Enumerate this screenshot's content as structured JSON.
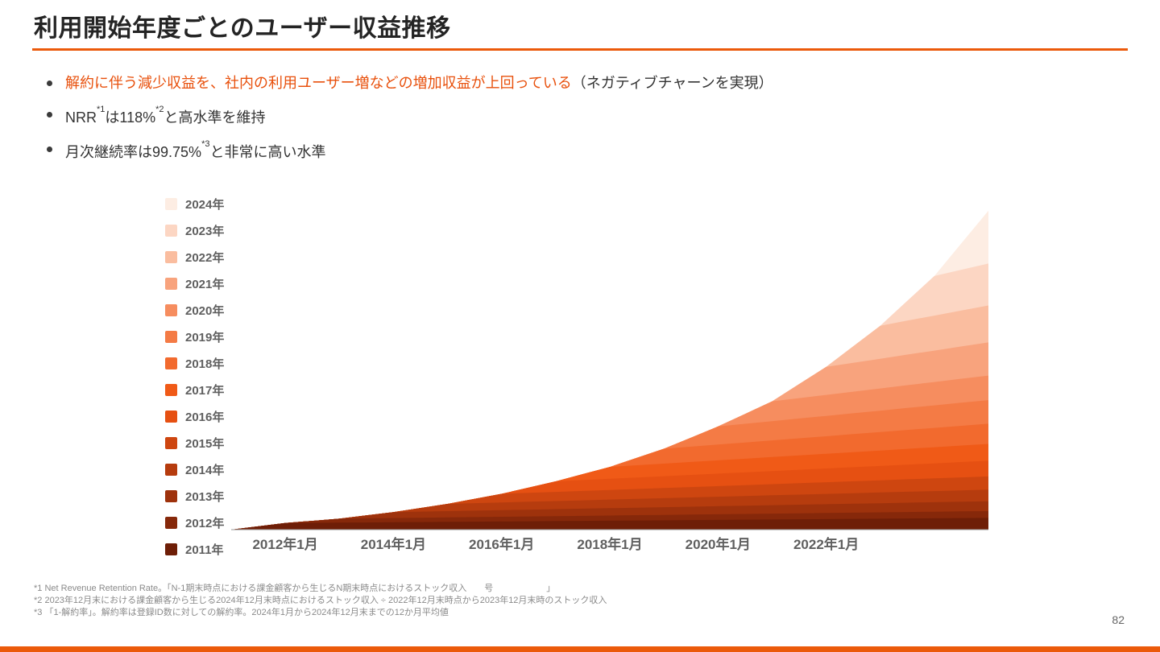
{
  "colors": {
    "accent": "#EB5A0B",
    "highlight_text": "#E8500C"
  },
  "header": {
    "title": "利用開始年度ごとのユーザー収益推移"
  },
  "bullets": {
    "b1": {
      "highlight": "解約に伴う減少収益を、社内の利用ユーザー増などの増加収益が上回っている",
      "suffix": "（ネガティブチャーンを実現）"
    },
    "b2": {
      "t1": "NRR",
      "s1": "*1",
      "t2": "は118%",
      "s2": "*2",
      "t3": "と高水準を維持"
    },
    "b3": {
      "t1": "月次継続率は99.75%",
      "s1": "*3",
      "t2": "と非常に高い水準"
    }
  },
  "footnotes": [
    "*1 Net Revenue Retention Rate。「N-1期末時点における課金顧客から生じるN期末時点におけるストック収入　　号　　　　　　」",
    "*2 2023年12月末における課金顧客から生じる2024年12月末時点におけるストック収入 ÷ 2022年12月末時点から2023年12月末時のストック収入",
    "*3 「1-解約率」。解約率は登録ID数に対しての解約率。2024年1月から2024年12月末までの12か月平均値"
  ],
  "page_number": "82",
  "chart_data": {
    "type": "area",
    "stacked": true,
    "title": "",
    "xlabel": "",
    "ylabel": "",
    "ylim": [
      0,
      100
    ],
    "y_axis_labels_visible": false,
    "grid": false,
    "legend_position": "left",
    "x": [
      2011,
      2011.5,
      2012,
      2012.5,
      2013,
      2013.5,
      2014,
      2014.5,
      2015,
      2015.5,
      2016,
      2016.5,
      2017,
      2017.5,
      2018,
      2018.5,
      2019,
      2019.5,
      2020,
      2020.5,
      2021,
      2021.5,
      2022,
      2022.5,
      2023,
      2023.5,
      2024,
      2024.5,
      2025
    ],
    "x_ticks": [
      {
        "t": 2012,
        "label": "2012年1月"
      },
      {
        "t": 2014,
        "label": "2014年1月"
      },
      {
        "t": 2016,
        "label": "2016年1月"
      },
      {
        "t": 2018,
        "label": "2018年1月"
      },
      {
        "t": 2020,
        "label": "2020年1月"
      },
      {
        "t": 2022,
        "label": "2022年1月"
      }
    ],
    "series": [
      {
        "name": "2011年",
        "color": "#6E1E07",
        "values": [
          0,
          1,
          2,
          2.06,
          2.12,
          2.18,
          2.24,
          2.3,
          2.36,
          2.42,
          2.48,
          2.54,
          2.6,
          2.66,
          2.72,
          2.78,
          2.84,
          2.9,
          2.96,
          3.02,
          3.08,
          3.14,
          3.2,
          3.26,
          3.32,
          3.38,
          3.44,
          3.5,
          3.56
        ]
      },
      {
        "name": "2012年",
        "color": "#86280A",
        "values": [
          0,
          0,
          0,
          0.6,
          1.2,
          1.24,
          1.27,
          1.31,
          1.34,
          1.38,
          1.42,
          1.45,
          1.49,
          1.52,
          1.56,
          1.6,
          1.63,
          1.67,
          1.7,
          1.74,
          1.78,
          1.81,
          1.85,
          1.88,
          1.92,
          1.96,
          1.99,
          2.03,
          2.06
        ]
      },
      {
        "name": "2013年",
        "color": "#9E320C",
        "values": [
          0,
          0,
          0,
          0,
          0,
          0.9,
          1.8,
          1.85,
          1.91,
          1.96,
          2.02,
          2.07,
          2.12,
          2.18,
          2.23,
          2.29,
          2.34,
          2.39,
          2.45,
          2.5,
          2.56,
          2.61,
          2.66,
          2.72,
          2.77,
          2.83,
          2.88,
          2.93,
          2.99
        ]
      },
      {
        "name": "2014年",
        "color": "#B63C0E",
        "values": [
          0,
          0,
          0,
          0,
          0,
          0,
          0,
          1.1,
          2.2,
          2.27,
          2.33,
          2.4,
          2.46,
          2.53,
          2.6,
          2.66,
          2.73,
          2.79,
          2.86,
          2.92,
          2.99,
          3.06,
          3.12,
          3.19,
          3.25,
          3.32,
          3.38,
          3.45,
          3.52
        ]
      },
      {
        "name": "2015年",
        "color": "#CE4610",
        "values": [
          0,
          0,
          0,
          0,
          0,
          0,
          0,
          0,
          0,
          1.3,
          2.6,
          2.68,
          2.76,
          2.83,
          2.91,
          2.99,
          3.07,
          3.15,
          3.22,
          3.3,
          3.38,
          3.46,
          3.54,
          3.61,
          3.69,
          3.77,
          3.85,
          3.93,
          4
        ]
      },
      {
        "name": "2016年",
        "color": "#E65012",
        "values": [
          0,
          0,
          0,
          0,
          0,
          0,
          0,
          0,
          0,
          0,
          0,
          1.6,
          3.2,
          3.3,
          3.39,
          3.49,
          3.58,
          3.68,
          3.78,
          3.87,
          3.97,
          4.06,
          4.16,
          4.26,
          4.35,
          4.45,
          4.54,
          4.64,
          4.74
        ]
      },
      {
        "name": "2017年",
        "color": "#F05A17",
        "values": [
          0,
          0,
          0,
          0,
          0,
          0,
          0,
          0,
          0,
          0,
          0,
          0,
          0,
          1.8,
          3.6,
          3.71,
          3.82,
          3.92,
          4.03,
          4.14,
          4.25,
          4.36,
          4.46,
          4.57,
          4.68,
          4.79,
          4.9,
          5,
          5.11
        ]
      },
      {
        "name": "2018年",
        "color": "#F26A2E",
        "values": [
          0,
          0,
          0,
          0,
          0,
          0,
          0,
          0,
          0,
          0,
          0,
          0,
          0,
          0,
          0,
          2.25,
          4.5,
          4.64,
          4.77,
          4.91,
          5.04,
          5.18,
          5.31,
          5.45,
          5.58,
          5.72,
          5.85,
          5.99,
          6.12
        ]
      },
      {
        "name": "2019年",
        "color": "#F47B45",
        "values": [
          0,
          0,
          0,
          0,
          0,
          0,
          0,
          0,
          0,
          0,
          0,
          0,
          0,
          0,
          0,
          0,
          0,
          2.75,
          5.5,
          5.67,
          5.83,
          6,
          6.16,
          6.33,
          6.49,
          6.66,
          6.82,
          6.99,
          7.15
        ]
      },
      {
        "name": "2020年",
        "color": "#F68D5F",
        "values": [
          0,
          0,
          0,
          0,
          0,
          0,
          0,
          0,
          0,
          0,
          0,
          0,
          0,
          0,
          0,
          0,
          0,
          0,
          0,
          3,
          6,
          6.18,
          6.36,
          6.54,
          6.72,
          6.9,
          7.08,
          7.26,
          7.44
        ]
      },
      {
        "name": "2021年",
        "color": "#F8A37D",
        "values": [
          0,
          0,
          0,
          0,
          0,
          0,
          0,
          0,
          0,
          0,
          0,
          0,
          0,
          0,
          0,
          0,
          0,
          0,
          0,
          0,
          0,
          4.25,
          8.5,
          8.76,
          9.01,
          9.27,
          9.52,
          9.78,
          10.03
        ]
      },
      {
        "name": "2022年",
        "color": "#FABD9F",
        "values": [
          0,
          0,
          0,
          0,
          0,
          0,
          0,
          0,
          0,
          0,
          0,
          0,
          0,
          0,
          0,
          0,
          0,
          0,
          0,
          0,
          0,
          0,
          0,
          5,
          10,
          10.3,
          10.6,
          10.9,
          11.2
        ]
      },
      {
        "name": "2023年",
        "color": "#FCD6C3",
        "values": [
          0,
          0,
          0,
          0,
          0,
          0,
          0,
          0,
          0,
          0,
          0,
          0,
          0,
          0,
          0,
          0,
          0,
          0,
          0,
          0,
          0,
          0,
          0,
          0,
          0,
          6,
          12,
          12.36,
          12.72
        ]
      },
      {
        "name": "2024年",
        "color": "#FDEDE3",
        "values": [
          0,
          0,
          0,
          0,
          0,
          0,
          0,
          0,
          0,
          0,
          0,
          0,
          0,
          0,
          0,
          0,
          0,
          0,
          0,
          0,
          0,
          0,
          0,
          0,
          0,
          0,
          0,
          8,
          16
        ]
      }
    ]
  }
}
